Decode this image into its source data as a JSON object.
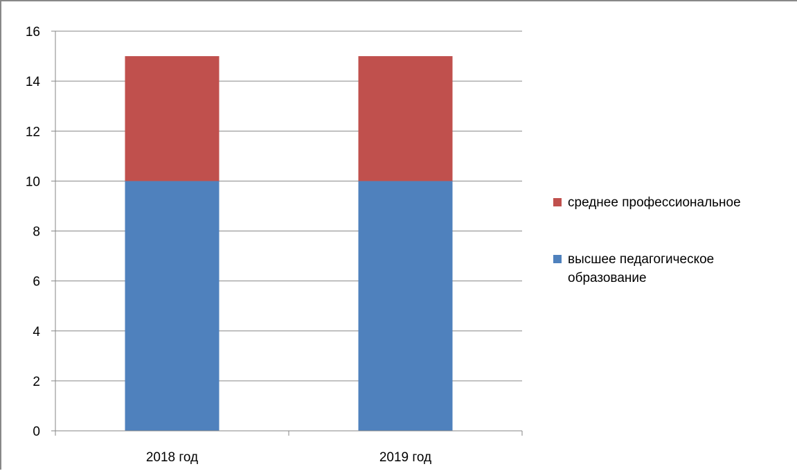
{
  "chart_data": {
    "type": "bar",
    "stacked": true,
    "title": "",
    "xlabel": "",
    "ylabel": "",
    "categories": [
      "2018 год",
      "2019 год"
    ],
    "series": [
      {
        "name": "высшее педагогическое образование",
        "values": [
          10,
          10
        ],
        "color": "#4F81BD"
      },
      {
        "name": "среднее профессиональное",
        "values": [
          5,
          5
        ],
        "color": "#C0504D"
      }
    ],
    "ylim": [
      0,
      16
    ],
    "yticks": [
      0,
      2,
      4,
      6,
      8,
      10,
      12,
      14,
      16
    ],
    "grid": true,
    "legend_position": "right"
  }
}
